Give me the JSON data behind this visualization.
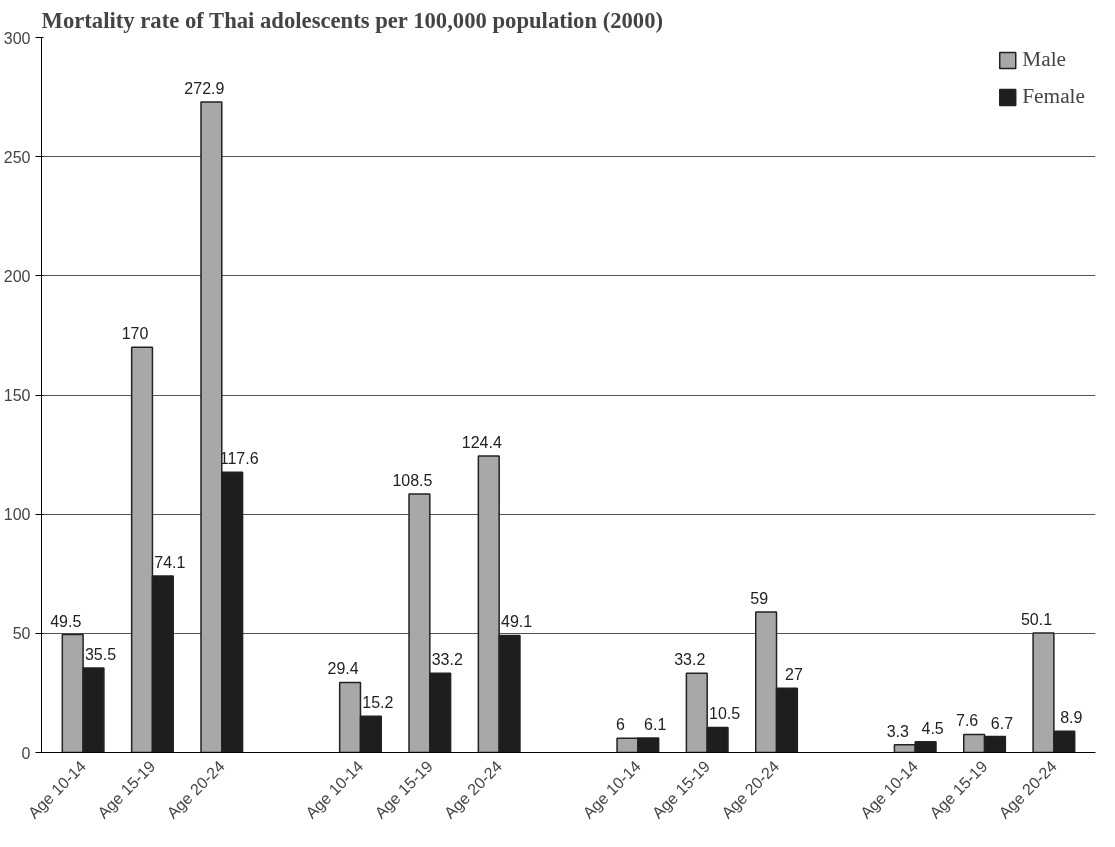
{
  "chart_data": {
    "type": "bar",
    "title": "Mortality rate of Thai adolescents per 100,000 population (2000)",
    "categories": [
      "Age 10-14",
      "Age 15-19",
      "Age 20-24",
      null,
      "Age 10-14",
      "Age 15-19",
      "Age 20-24",
      null,
      "Age 10-14",
      "Age 15-19",
      "Age 20-24",
      null,
      "Age 10-14",
      "Age 15-19",
      "Age 20-24"
    ],
    "series": [
      {
        "name": "Male",
        "color": "#a8a8a8",
        "values": [
          49.5,
          170,
          272.9,
          null,
          29.4,
          108.5,
          124.4,
          null,
          6,
          33.2,
          59,
          null,
          3.3,
          7.6,
          50.1
        ]
      },
      {
        "name": "Female",
        "color": "#1e1e1e",
        "values": [
          35.5,
          74.1,
          117.6,
          null,
          15.2,
          33.2,
          49.1,
          null,
          6.1,
          10.5,
          27,
          null,
          4.5,
          6.7,
          8.9
        ]
      }
    ],
    "ylim": [
      0,
      300
    ],
    "yticks": [
      0,
      50,
      100,
      150,
      200,
      250,
      300
    ],
    "grid": "y",
    "legend": "top right",
    "data_labels": true
  }
}
